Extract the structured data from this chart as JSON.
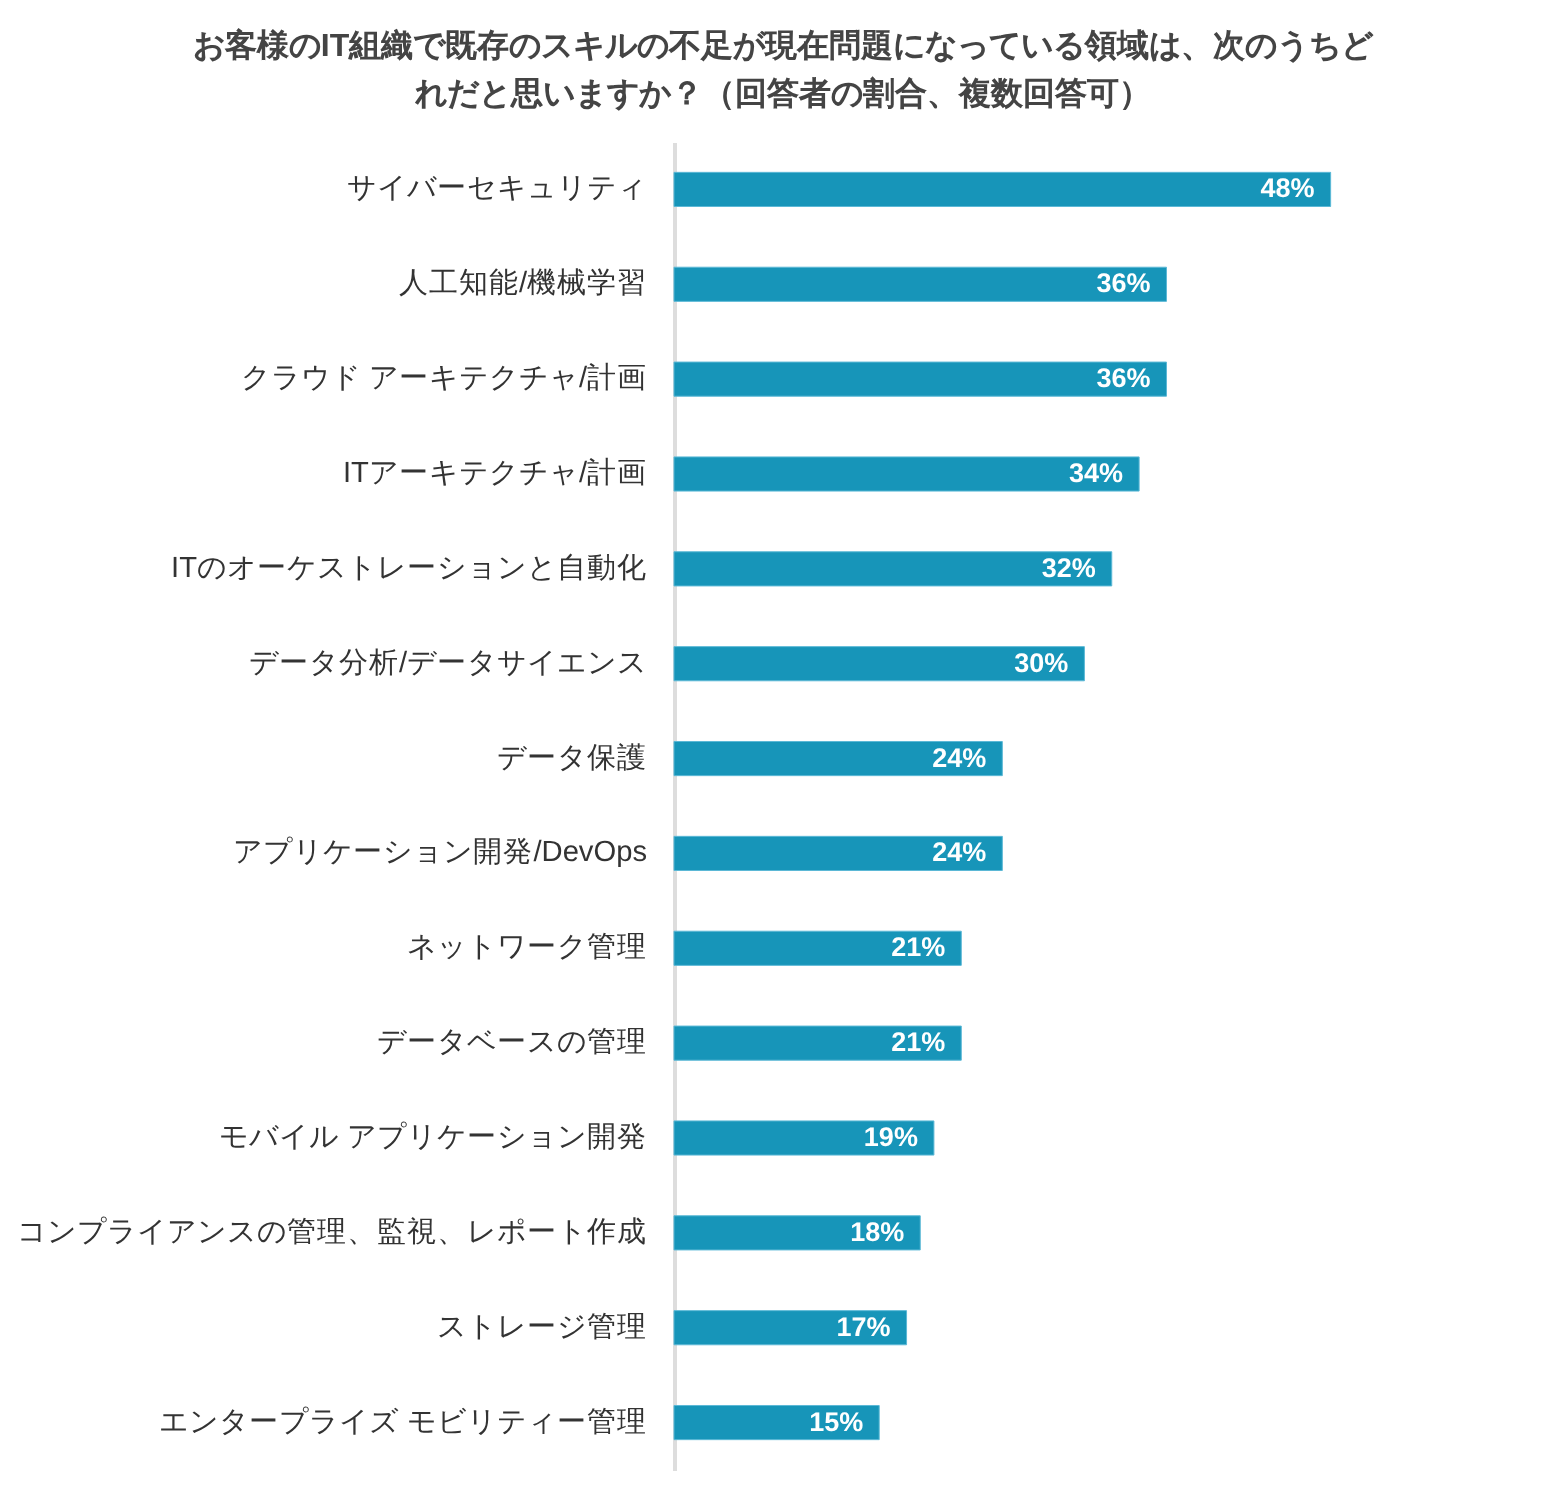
{
  "chart_data": {
    "type": "bar",
    "orientation": "horizontal",
    "title": "お客様のIT組織で既存のスキルの不足が現在問題になっている領域は、次のうちどれだと思いますか？（回答者の割合、複数回答可）",
    "categories": [
      "サイバーセキュリティ",
      "人工知能/機械学習",
      "クラウド アーキテクチャ/計画",
      "ITアーキテクチャ/計画",
      "ITのオーケストレーションと自動化",
      "データ分析/データサイエンス",
      "データ保護",
      "アプリケーション開発/DevOps",
      "ネットワーク管理",
      "データベースの管理",
      "モバイル アプリケーション開発",
      "コンプライアンスの管理、監視、レポート作成",
      "ストレージ管理",
      "エンタープライズ モビリティー管理"
    ],
    "values": [
      48,
      36,
      36,
      34,
      32,
      30,
      24,
      24,
      21,
      21,
      19,
      18,
      17,
      15
    ],
    "value_labels": [
      "48%",
      "36%",
      "36%",
      "34%",
      "32%",
      "30%",
      "24%",
      "24%",
      "21%",
      "21%",
      "19%",
      "18%",
      "17%",
      "15%"
    ],
    "color": "#1795b9"
  }
}
